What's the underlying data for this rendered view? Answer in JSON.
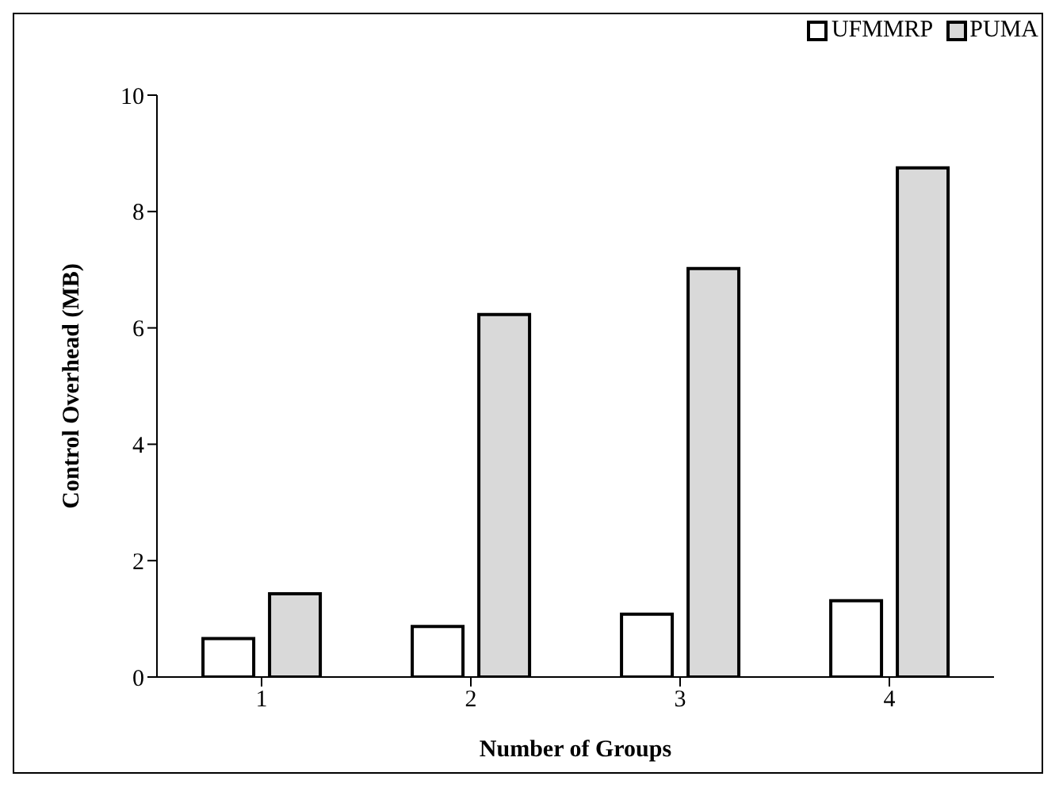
{
  "chart_data": {
    "type": "bar",
    "xlabel": "Number of Groups",
    "ylabel": "Control  Overhead (MB)",
    "categories": [
      "1",
      "2",
      "3",
      "4"
    ],
    "series": [
      {
        "name": "UFMMRP",
        "color": "#ffffff",
        "values": [
          0.66,
          0.87,
          1.08,
          1.31
        ]
      },
      {
        "name": "PUMA",
        "color": "#d9d9d9",
        "values": [
          1.43,
          6.23,
          7.02,
          8.75
        ]
      }
    ],
    "ylim": [
      0,
      10
    ],
    "yticks": [
      0,
      2,
      4,
      6,
      8,
      10
    ],
    "grid": false,
    "legend": "top right"
  }
}
